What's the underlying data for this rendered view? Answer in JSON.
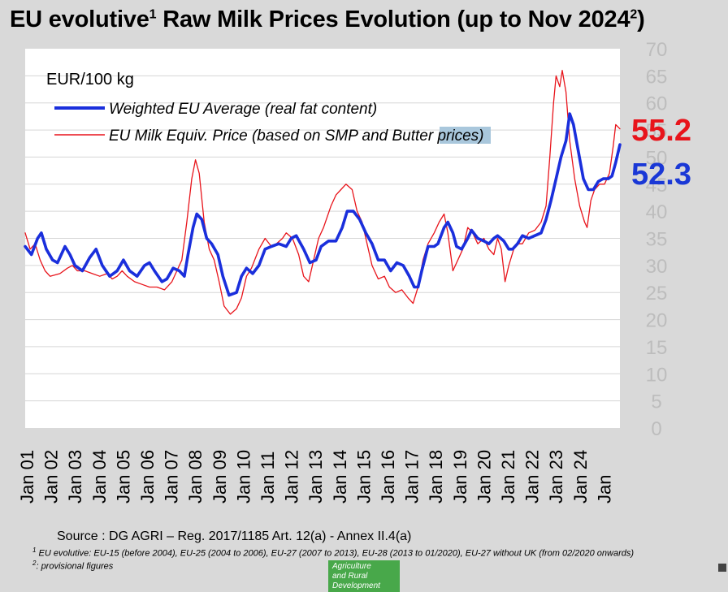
{
  "header": {
    "title": "EU evolutive",
    "title_sup1": "1",
    "title_rest": " Raw Milk Prices Evolution (up to Nov 2024",
    "title_sup2": "2",
    "title_end": ")"
  },
  "chart_data": {
    "type": "line",
    "title": "EU evolutive¹ Raw Milk Prices Evolution (up to Nov 2024²)",
    "unit_label": "EUR/100 kg",
    "ylim": [
      0,
      70
    ],
    "y_ticks": [
      0,
      5,
      10,
      15,
      20,
      25,
      30,
      35,
      40,
      45,
      50,
      55,
      60,
      65,
      70
    ],
    "x_range": [
      2001.0,
      2024.92
    ],
    "x_labels": [
      "Jan 01",
      "Jan 02",
      "Jan 03",
      "Jan 04",
      "Jan 05",
      "Jan 06",
      "Jan 07",
      "Jan 08",
      "Jan 09",
      "Jan 10",
      "Jan 11",
      "Jan 12",
      "Jan 13",
      "Jan 14",
      "Jan 15",
      "Jan 16",
      "Jan 17",
      "Jan 18",
      "Jan 19",
      "Jan 20",
      "Jan 21",
      "Jan 22",
      "Jan 23",
      "Jan 24"
    ],
    "last_label": "Jan",
    "legend": {
      "series1": "Weighted EU Average (real fat content)",
      "series2_pre": "EU Milk Equiv. Price (based on SMP and ",
      "series2_highlight": "Butter",
      "series2_post": " prices)"
    },
    "annotations": [
      {
        "text": "55.2",
        "color": "#e8141b"
      },
      {
        "text": "52.3",
        "color": "#1a38d6"
      }
    ],
    "series": [
      {
        "name": "Weighted EU Average (real fat content)",
        "color": "#1a2fdc",
        "points": [
          [
            2001.0,
            33.5
          ],
          [
            2001.25,
            32
          ],
          [
            2001.5,
            35
          ],
          [
            2001.65,
            36
          ],
          [
            2001.85,
            33
          ],
          [
            2002.1,
            31
          ],
          [
            2002.3,
            30.5
          ],
          [
            2002.6,
            33.5
          ],
          [
            2002.8,
            32
          ],
          [
            2003.0,
            30
          ],
          [
            2003.3,
            29
          ],
          [
            2003.6,
            31.5
          ],
          [
            2003.85,
            33
          ],
          [
            2004.1,
            30
          ],
          [
            2004.4,
            28
          ],
          [
            2004.7,
            29
          ],
          [
            2004.95,
            31
          ],
          [
            2005.2,
            29
          ],
          [
            2005.5,
            28
          ],
          [
            2005.8,
            30
          ],
          [
            2006.0,
            30.5
          ],
          [
            2006.2,
            29
          ],
          [
            2006.5,
            27
          ],
          [
            2006.7,
            27.5
          ],
          [
            2006.95,
            29.5
          ],
          [
            2007.2,
            29
          ],
          [
            2007.4,
            28
          ],
          [
            2007.55,
            32
          ],
          [
            2007.75,
            37
          ],
          [
            2007.9,
            39.5
          ],
          [
            2008.1,
            38.5
          ],
          [
            2008.3,
            35
          ],
          [
            2008.5,
            34
          ],
          [
            2008.75,
            32
          ],
          [
            2008.95,
            28
          ],
          [
            2009.2,
            24.5
          ],
          [
            2009.5,
            25
          ],
          [
            2009.7,
            28
          ],
          [
            2009.9,
            29.5
          ],
          [
            2010.15,
            28.5
          ],
          [
            2010.4,
            30
          ],
          [
            2010.65,
            33
          ],
          [
            2010.9,
            33.5
          ],
          [
            2011.2,
            34
          ],
          [
            2011.5,
            33.5
          ],
          [
            2011.7,
            35
          ],
          [
            2011.9,
            35.5
          ],
          [
            2012.2,
            33
          ],
          [
            2012.45,
            30.5
          ],
          [
            2012.7,
            31
          ],
          [
            2012.9,
            33.5
          ],
          [
            2013.2,
            34.5
          ],
          [
            2013.5,
            34.5
          ],
          [
            2013.75,
            37
          ],
          [
            2013.95,
            40
          ],
          [
            2014.2,
            40
          ],
          [
            2014.45,
            38.5
          ],
          [
            2014.7,
            36
          ],
          [
            2014.95,
            34
          ],
          [
            2015.2,
            31
          ],
          [
            2015.45,
            31
          ],
          [
            2015.7,
            29
          ],
          [
            2015.95,
            30.5
          ],
          [
            2016.2,
            30
          ],
          [
            2016.45,
            28
          ],
          [
            2016.65,
            26
          ],
          [
            2016.8,
            26
          ],
          [
            2016.95,
            29
          ],
          [
            2017.2,
            33.5
          ],
          [
            2017.45,
            33.5
          ],
          [
            2017.6,
            34
          ],
          [
            2017.85,
            37
          ],
          [
            2018.0,
            38
          ],
          [
            2018.2,
            36
          ],
          [
            2018.35,
            33.5
          ],
          [
            2018.55,
            33
          ],
          [
            2018.8,
            35
          ],
          [
            2018.95,
            36.5
          ],
          [
            2019.2,
            35
          ],
          [
            2019.45,
            34.5
          ],
          [
            2019.65,
            34
          ],
          [
            2019.85,
            35
          ],
          [
            2020.0,
            35.5
          ],
          [
            2020.25,
            34.5
          ],
          [
            2020.45,
            33
          ],
          [
            2020.6,
            33
          ],
          [
            2020.8,
            34
          ],
          [
            2021.0,
            35.5
          ],
          [
            2021.25,
            35
          ],
          [
            2021.5,
            35.5
          ],
          [
            2021.75,
            36
          ],
          [
            2021.95,
            38.5
          ],
          [
            2022.15,
            42
          ],
          [
            2022.35,
            46
          ],
          [
            2022.55,
            50
          ],
          [
            2022.75,
            53
          ],
          [
            2022.9,
            58
          ],
          [
            2023.05,
            56
          ],
          [
            2023.25,
            51
          ],
          [
            2023.45,
            46
          ],
          [
            2023.65,
            44
          ],
          [
            2023.85,
            44
          ],
          [
            2024.05,
            45.5
          ],
          [
            2024.25,
            46
          ],
          [
            2024.45,
            46
          ],
          [
            2024.6,
            46.5
          ],
          [
            2024.75,
            49
          ],
          [
            2024.92,
            52.3
          ]
        ]
      },
      {
        "name": "EU Milk Equiv. Price (based on SMP and Butter prices)",
        "color": "#e8141b",
        "points": [
          [
            2001.0,
            36
          ],
          [
            2001.2,
            33
          ],
          [
            2001.4,
            34
          ],
          [
            2001.6,
            31
          ],
          [
            2001.8,
            29
          ],
          [
            2002.0,
            28
          ],
          [
            2002.4,
            28.5
          ],
          [
            2002.7,
            29.5
          ],
          [
            2002.9,
            30
          ],
          [
            2003.1,
            29
          ],
          [
            2003.4,
            29
          ],
          [
            2003.7,
            28.5
          ],
          [
            2004.0,
            28
          ],
          [
            2004.3,
            28.5
          ],
          [
            2004.5,
            27.5
          ],
          [
            2004.7,
            28
          ],
          [
            2004.9,
            29
          ],
          [
            2005.1,
            28
          ],
          [
            2005.4,
            27
          ],
          [
            2005.7,
            26.5
          ],
          [
            2006.0,
            26
          ],
          [
            2006.3,
            26
          ],
          [
            2006.6,
            25.5
          ],
          [
            2006.9,
            27
          ],
          [
            2007.1,
            29
          ],
          [
            2007.3,
            31
          ],
          [
            2007.5,
            38
          ],
          [
            2007.7,
            46
          ],
          [
            2007.85,
            49.5
          ],
          [
            2008.0,
            47
          ],
          [
            2008.2,
            38
          ],
          [
            2008.4,
            33
          ],
          [
            2008.6,
            31
          ],
          [
            2008.8,
            27
          ],
          [
            2009.0,
            22.5
          ],
          [
            2009.25,
            21
          ],
          [
            2009.5,
            22
          ],
          [
            2009.7,
            24
          ],
          [
            2009.9,
            28
          ],
          [
            2010.1,
            29.5
          ],
          [
            2010.4,
            33
          ],
          [
            2010.65,
            35
          ],
          [
            2010.9,
            33.5
          ],
          [
            2011.1,
            34
          ],
          [
            2011.35,
            35
          ],
          [
            2011.5,
            36
          ],
          [
            2011.75,
            35
          ],
          [
            2012.0,
            32
          ],
          [
            2012.2,
            28
          ],
          [
            2012.4,
            27
          ],
          [
            2012.6,
            31
          ],
          [
            2012.8,
            35
          ],
          [
            2013.0,
            37
          ],
          [
            2013.3,
            41
          ],
          [
            2013.5,
            43
          ],
          [
            2013.7,
            44
          ],
          [
            2013.9,
            45
          ],
          [
            2014.15,
            44
          ],
          [
            2014.35,
            40
          ],
          [
            2014.55,
            38
          ],
          [
            2014.75,
            34
          ],
          [
            2014.95,
            30
          ],
          [
            2015.2,
            27.5
          ],
          [
            2015.45,
            28
          ],
          [
            2015.65,
            26
          ],
          [
            2015.9,
            25
          ],
          [
            2016.15,
            25.5
          ],
          [
            2016.4,
            24
          ],
          [
            2016.6,
            23
          ],
          [
            2016.8,
            26
          ],
          [
            2017.0,
            31
          ],
          [
            2017.2,
            34
          ],
          [
            2017.45,
            36
          ],
          [
            2017.65,
            38
          ],
          [
            2017.85,
            39.5
          ],
          [
            2018.0,
            36
          ],
          [
            2018.2,
            29
          ],
          [
            2018.4,
            31
          ],
          [
            2018.6,
            33
          ],
          [
            2018.8,
            37
          ],
          [
            2019.0,
            36
          ],
          [
            2019.2,
            34
          ],
          [
            2019.45,
            35
          ],
          [
            2019.65,
            33
          ],
          [
            2019.85,
            32
          ],
          [
            2020.0,
            35
          ],
          [
            2020.15,
            33
          ],
          [
            2020.3,
            27
          ],
          [
            2020.45,
            30
          ],
          [
            2020.65,
            33
          ],
          [
            2020.85,
            34
          ],
          [
            2021.0,
            34
          ],
          [
            2021.25,
            36
          ],
          [
            2021.5,
            36.5
          ],
          [
            2021.75,
            38
          ],
          [
            2021.95,
            41
          ],
          [
            2022.1,
            50
          ],
          [
            2022.25,
            60
          ],
          [
            2022.35,
            65
          ],
          [
            2022.5,
            63
          ],
          [
            2022.6,
            66
          ],
          [
            2022.75,
            62
          ],
          [
            2022.9,
            53
          ],
          [
            2023.1,
            46
          ],
          [
            2023.3,
            41
          ],
          [
            2023.5,
            38
          ],
          [
            2023.6,
            37
          ],
          [
            2023.75,
            42
          ],
          [
            2023.9,
            44
          ],
          [
            2024.1,
            45
          ],
          [
            2024.3,
            45
          ],
          [
            2024.5,
            47
          ],
          [
            2024.65,
            52
          ],
          [
            2024.75,
            56
          ],
          [
            2024.92,
            55.2
          ]
        ]
      }
    ]
  },
  "footer": {
    "source": "Source : DG AGRI – Reg. 2017/1185 Art. 12(a) - Annex II.4(a)",
    "footnote1_mark": "1",
    "footnote1": " EU evolutive: EU-15 (before 2004), EU-25 (2004 to 2006), EU-27 (2007 to 2013), EU-28 (2013 to 01/2020), EU-27 without UK (from 02/2020 onwards)",
    "footnote2_mark": "2",
    "footnote2": ": provisional figures",
    "logo_line1": "Agriculture",
    "logo_line2": "and Rural",
    "logo_line3": "Development"
  }
}
